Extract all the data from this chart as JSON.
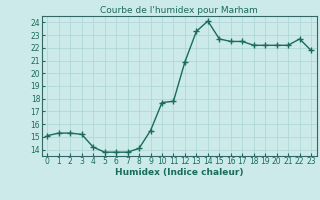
{
  "x": [
    0,
    1,
    2,
    3,
    4,
    5,
    6,
    7,
    8,
    9,
    10,
    11,
    12,
    13,
    14,
    15,
    16,
    17,
    18,
    19,
    20,
    21,
    22,
    23
  ],
  "y": [
    15.1,
    15.3,
    15.3,
    15.2,
    14.2,
    13.8,
    13.8,
    13.8,
    14.1,
    15.5,
    17.7,
    17.8,
    20.9,
    23.3,
    24.1,
    22.7,
    22.5,
    22.5,
    22.2,
    22.2,
    22.2,
    22.2,
    22.7,
    21.8
  ],
  "line_color": "#1a6b5a",
  "marker": "+",
  "markersize": 4,
  "linewidth": 1.0,
  "markeredgewidth": 1.0,
  "title": "Courbe de l'humidex pour Marham",
  "xlabel": "Humidex (Indice chaleur)",
  "xlim": [
    -0.5,
    23.5
  ],
  "ylim": [
    13.5,
    24.5
  ],
  "yticks": [
    14,
    15,
    16,
    17,
    18,
    19,
    20,
    21,
    22,
    23,
    24
  ],
  "xticks": [
    0,
    1,
    2,
    3,
    4,
    5,
    6,
    7,
    8,
    9,
    10,
    11,
    12,
    13,
    14,
    15,
    16,
    17,
    18,
    19,
    20,
    21,
    22,
    23
  ],
  "bg_color": "#cceaea",
  "grid_color": "#aad4d4",
  "title_fontsize": 6.5,
  "label_fontsize": 6.5,
  "tick_fontsize": 5.5,
  "spine_color": "#336666"
}
